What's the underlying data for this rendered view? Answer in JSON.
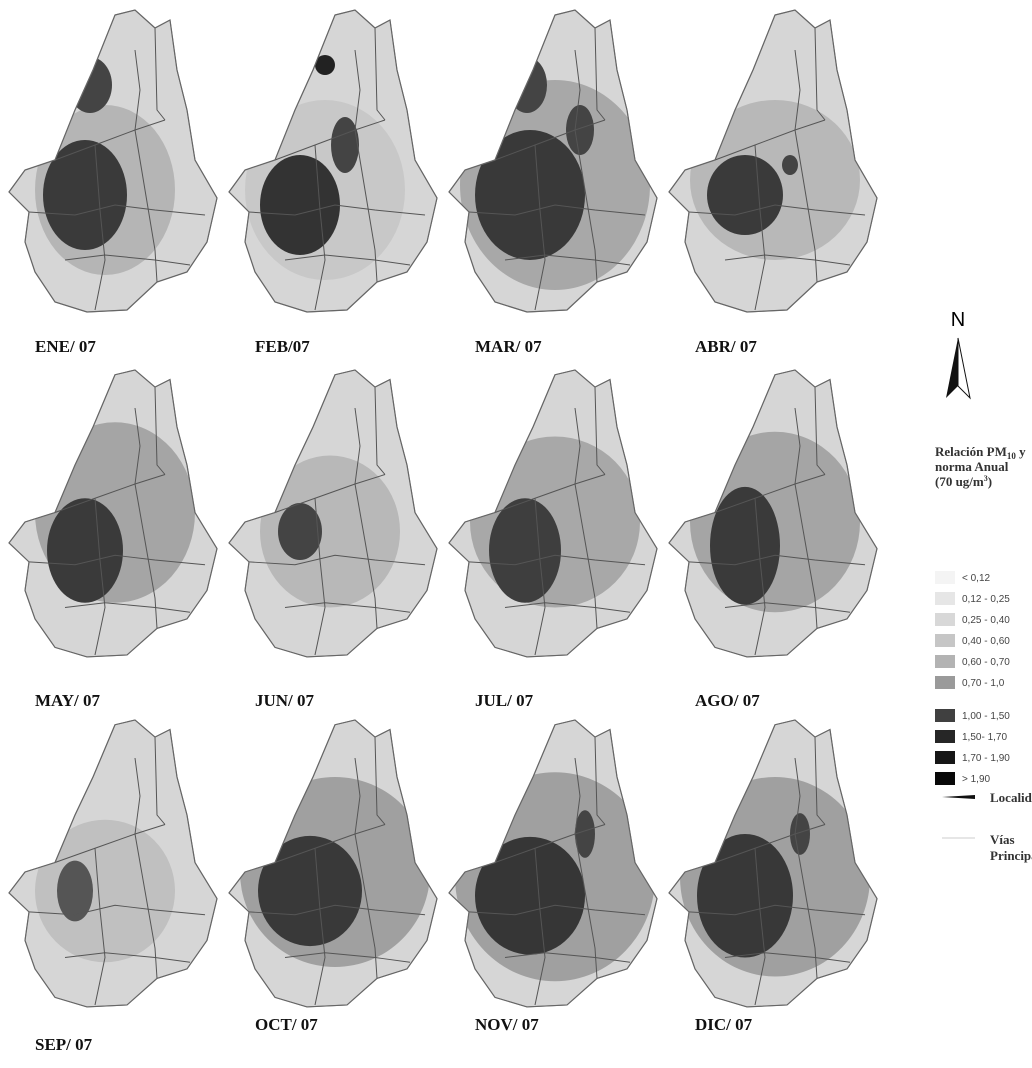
{
  "panels": [
    {
      "label": "ENE/ 07"
    },
    {
      "label": "FEB/07"
    },
    {
      "label": "MAR/ 07"
    },
    {
      "label": "ABR/ 07"
    },
    {
      "label": "MAY/ 07"
    },
    {
      "label": "JUN/ 07"
    },
    {
      "label": "JUL/ 07"
    },
    {
      "label": "AGO/ 07"
    },
    {
      "label": "SEP/ 07"
    },
    {
      "label": "OCT/ 07"
    },
    {
      "label": "NOV/ 07"
    },
    {
      "label": "DIC/ 07"
    }
  ],
  "north": "N",
  "legend": {
    "title": {
      "part1": "Relación PM",
      "sub": "10",
      "part2": " y",
      "line2": "norma Anual",
      "part3": "(70 ug/m",
      "sup": "3",
      "part4": ")"
    },
    "classes": [
      {
        "label": "< 0,12",
        "color": "#f4f4f4"
      },
      {
        "label": "0,12 - 0,25",
        "color": "#e6e6e6"
      },
      {
        "label": "0,25 - 0,40",
        "color": "#d8d8d8"
      },
      {
        "label": "0,40 - 0,60",
        "color": "#c6c6c6"
      },
      {
        "label": "0,60 - 0,70",
        "color": "#b3b3b3"
      },
      {
        "label": "0,70 - 1,0",
        "color": "#9a9a9a"
      },
      {
        "label": "1,00 - 1,50",
        "color": "#404040"
      },
      {
        "label": "1,50- 1,70",
        "color": "#262626"
      },
      {
        "label": "1,70 - 1,90",
        "color": "#161616"
      },
      {
        "label": "> 1,90",
        "color": "#080808"
      }
    ],
    "localidades": "Localidades",
    "vias": [
      "Vías",
      "Principales"
    ]
  }
}
